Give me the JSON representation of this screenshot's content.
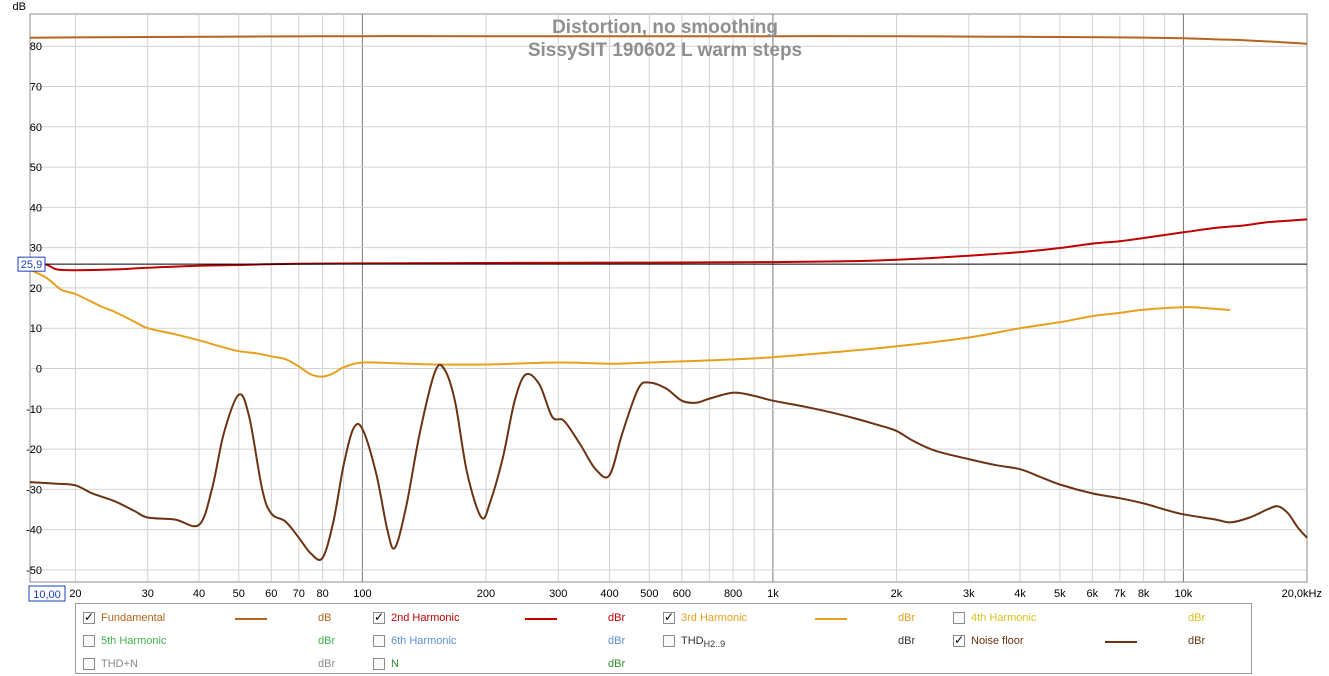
{
  "chart_data": {
    "type": "line",
    "title": "Distortion, no smoothing",
    "subtitle": "SissySIT 190602 L warm steps",
    "ylabel": "dB",
    "x_scale": "log",
    "xlim": [
      15.5,
      20000
    ],
    "ylim": [
      -53,
      88
    ],
    "grid": true,
    "x_ticks": [
      {
        "value": 20,
        "label": "20"
      },
      {
        "value": 30,
        "label": "30"
      },
      {
        "value": 40,
        "label": "40"
      },
      {
        "value": 50,
        "label": "50"
      },
      {
        "value": 60,
        "label": "60"
      },
      {
        "value": 70,
        "label": "70"
      },
      {
        "value": 80,
        "label": "80"
      },
      {
        "value": 100,
        "label": "100"
      },
      {
        "value": 200,
        "label": "200"
      },
      {
        "value": 300,
        "label": "300"
      },
      {
        "value": 400,
        "label": "400"
      },
      {
        "value": 500,
        "label": "500"
      },
      {
        "value": 600,
        "label": "600"
      },
      {
        "value": 800,
        "label": "800"
      },
      {
        "value": 1000,
        "label": "1k"
      },
      {
        "value": 2000,
        "label": "2k"
      },
      {
        "value": 3000,
        "label": "3k"
      },
      {
        "value": 4000,
        "label": "4k"
      },
      {
        "value": 5000,
        "label": "5k"
      },
      {
        "value": 6000,
        "label": "6k"
      },
      {
        "value": 7000,
        "label": "7k"
      },
      {
        "value": 8000,
        "label": "8k"
      },
      {
        "value": 10000,
        "label": "10k"
      },
      {
        "value": 20000,
        "label": "20,0kHz"
      }
    ],
    "y_ticks": [
      {
        "value": 80,
        "label": "80"
      },
      {
        "value": 70,
        "label": "70"
      },
      {
        "value": 60,
        "label": "60"
      },
      {
        "value": 50,
        "label": "50"
      },
      {
        "value": 40,
        "label": "40"
      },
      {
        "value": 30,
        "label": "30"
      },
      {
        "value": 20,
        "label": "20"
      },
      {
        "value": 10,
        "label": "10"
      },
      {
        "value": 0,
        "label": "0"
      },
      {
        "value": -10,
        "label": "-10"
      },
      {
        "value": -20,
        "label": "-20"
      },
      {
        "value": -30,
        "label": "-30"
      },
      {
        "value": -40,
        "label": "-40"
      },
      {
        "value": -50,
        "label": "-50"
      }
    ],
    "cursor": {
      "y_value": 25.9,
      "y_label": "25,9",
      "x_label": "10,00"
    },
    "series": [
      {
        "name": "Fundamental",
        "color": "#b5651d",
        "points": [
          [
            15.5,
            82.1
          ],
          [
            20,
            82.2
          ],
          [
            30,
            82.3
          ],
          [
            50,
            82.4
          ],
          [
            100,
            82.5
          ],
          [
            200,
            82.5
          ],
          [
            500,
            82.5
          ],
          [
            1000,
            82.5
          ],
          [
            2000,
            82.5
          ],
          [
            3000,
            82.4
          ],
          [
            5000,
            82.3
          ],
          [
            7000,
            82.2
          ],
          [
            10000,
            82.0
          ],
          [
            12000,
            81.7
          ],
          [
            14000,
            81.5
          ],
          [
            16000,
            81.2
          ],
          [
            18000,
            80.9
          ],
          [
            20000,
            80.6
          ]
        ]
      },
      {
        "name": "2nd Harmonic",
        "color": "#c00000",
        "points": [
          [
            15.5,
            26.3
          ],
          [
            17,
            25.8
          ],
          [
            18,
            24.6
          ],
          [
            20,
            24.4
          ],
          [
            25,
            24.6
          ],
          [
            30,
            25.0
          ],
          [
            40,
            25.5
          ],
          [
            50,
            25.7
          ],
          [
            70,
            26.0
          ],
          [
            100,
            26.1
          ],
          [
            200,
            26.2
          ],
          [
            500,
            26.3
          ],
          [
            1000,
            26.4
          ],
          [
            1500,
            26.6
          ],
          [
            2000,
            27.0
          ],
          [
            2500,
            27.5
          ],
          [
            3000,
            28.0
          ],
          [
            4000,
            28.9
          ],
          [
            5000,
            29.9
          ],
          [
            6000,
            31.0
          ],
          [
            7000,
            31.6
          ],
          [
            8000,
            32.4
          ],
          [
            10000,
            33.8
          ],
          [
            12000,
            34.9
          ],
          [
            14000,
            35.5
          ],
          [
            16000,
            36.3
          ],
          [
            18000,
            36.7
          ],
          [
            20000,
            37.0
          ]
        ]
      },
      {
        "name": "3rd Harmonic",
        "color": "#e6a01e",
        "points": [
          [
            15.5,
            24.5
          ],
          [
            17,
            22.5
          ],
          [
            18.5,
            19.5
          ],
          [
            20,
            18.5
          ],
          [
            23,
            15.5
          ],
          [
            25,
            14.0
          ],
          [
            28,
            11.5
          ],
          [
            30,
            10.0
          ],
          [
            35,
            8.5
          ],
          [
            40,
            7.0
          ],
          [
            45,
            5.5
          ],
          [
            50,
            4.3
          ],
          [
            55,
            3.8
          ],
          [
            60,
            3.0
          ],
          [
            65,
            2.3
          ],
          [
            70,
            0.5
          ],
          [
            75,
            -1.5
          ],
          [
            80,
            -2.0
          ],
          [
            85,
            -1.2
          ],
          [
            90,
            0.3
          ],
          [
            100,
            1.5
          ],
          [
            120,
            1.3
          ],
          [
            150,
            1.0
          ],
          [
            200,
            1.0
          ],
          [
            300,
            1.5
          ],
          [
            400,
            1.2
          ],
          [
            500,
            1.5
          ],
          [
            700,
            2.0
          ],
          [
            1000,
            2.8
          ],
          [
            1500,
            4.3
          ],
          [
            2000,
            5.5
          ],
          [
            3000,
            7.7
          ],
          [
            4000,
            10.0
          ],
          [
            5000,
            11.5
          ],
          [
            6000,
            13.0
          ],
          [
            7000,
            13.8
          ],
          [
            8000,
            14.6
          ],
          [
            10000,
            15.2
          ],
          [
            11000,
            15.1
          ],
          [
            13000,
            14.5
          ]
        ]
      },
      {
        "name": "Noise floor",
        "color": "#6b3312",
        "points": [
          [
            15.5,
            -28.2
          ],
          [
            18,
            -28.6
          ],
          [
            20,
            -29.0
          ],
          [
            22,
            -31.0
          ],
          [
            25,
            -33.0
          ],
          [
            28,
            -35.5
          ],
          [
            30,
            -37.0
          ],
          [
            35,
            -37.5
          ],
          [
            40,
            -38.8
          ],
          [
            43,
            -30
          ],
          [
            46,
            -16
          ],
          [
            50,
            -6.5
          ],
          [
            53,
            -12
          ],
          [
            57,
            -30
          ],
          [
            60,
            -36
          ],
          [
            65,
            -38
          ],
          [
            70,
            -42
          ],
          [
            75,
            -46
          ],
          [
            80,
            -47
          ],
          [
            85,
            -38
          ],
          [
            90,
            -24
          ],
          [
            95,
            -15
          ],
          [
            100,
            -15
          ],
          [
            108,
            -26
          ],
          [
            115,
            -40
          ],
          [
            120,
            -44.5
          ],
          [
            128,
            -34
          ],
          [
            138,
            -16
          ],
          [
            150,
            -1
          ],
          [
            158,
            0
          ],
          [
            168,
            -8
          ],
          [
            180,
            -26
          ],
          [
            195,
            -37
          ],
          [
            205,
            -33
          ],
          [
            220,
            -22
          ],
          [
            235,
            -8
          ],
          [
            250,
            -1.5
          ],
          [
            270,
            -4
          ],
          [
            290,
            -12
          ],
          [
            310,
            -13
          ],
          [
            340,
            -19
          ],
          [
            370,
            -25
          ],
          [
            400,
            -26.5
          ],
          [
            430,
            -16
          ],
          [
            470,
            -5
          ],
          [
            500,
            -3.5
          ],
          [
            550,
            -5
          ],
          [
            600,
            -8
          ],
          [
            650,
            -8.5
          ],
          [
            700,
            -7.5
          ],
          [
            800,
            -6
          ],
          [
            900,
            -6.8
          ],
          [
            1000,
            -8
          ],
          [
            1200,
            -9.5
          ],
          [
            1400,
            -11
          ],
          [
            1600,
            -12.5
          ],
          [
            1800,
            -14
          ],
          [
            2000,
            -15.5
          ],
          [
            2200,
            -18
          ],
          [
            2500,
            -20.5
          ],
          [
            3000,
            -22.5
          ],
          [
            3500,
            -24
          ],
          [
            4000,
            -25
          ],
          [
            4500,
            -27
          ],
          [
            5000,
            -28.8
          ],
          [
            6000,
            -31
          ],
          [
            7000,
            -32.2
          ],
          [
            8000,
            -33.5
          ],
          [
            9000,
            -35
          ],
          [
            10000,
            -36.2
          ],
          [
            12000,
            -37.5
          ],
          [
            13000,
            -38.2
          ],
          [
            14500,
            -37
          ],
          [
            16000,
            -35
          ],
          [
            17000,
            -34.2
          ],
          [
            18000,
            -36
          ],
          [
            19000,
            -39.5
          ],
          [
            20000,
            -42
          ]
        ]
      }
    ]
  },
  "legend": {
    "items": [
      {
        "label": "Fundamental",
        "checked": true,
        "unit": "dB",
        "color": "#b5651d",
        "unit_color": "#b5651d",
        "has_line": true
      },
      {
        "label": "2nd Harmonic",
        "checked": true,
        "unit": "dBr",
        "color": "#c00000",
        "unit_color": "#c00000",
        "has_line": true
      },
      {
        "label": "3rd Harmonic",
        "checked": true,
        "unit": "dBr",
        "color": "#e6a01e",
        "unit_color": "#e6a01e",
        "has_line": true
      },
      {
        "label": "4th Harmonic",
        "checked": false,
        "unit": "dBr",
        "color": "#d9c21e",
        "unit_color": "#d9c21e",
        "has_line": false
      },
      {
        "label": "5th Harmonic",
        "checked": false,
        "unit": "dBr",
        "color": "#3fb34a",
        "unit_color": "#3fb34a",
        "has_line": false
      },
      {
        "label": "6th Harmonic",
        "checked": false,
        "unit": "dBr",
        "color": "#5b8fd6",
        "unit_color": "#5b8fd6",
        "has_line": false
      },
      {
        "label": "THD",
        "sub": "H2..9",
        "checked": false,
        "unit": "dBr",
        "color": "#333333",
        "unit_color": "#333333",
        "has_line": false
      },
      {
        "label": "Noise floor",
        "checked": true,
        "unit": "dBr",
        "color": "#6b3312",
        "unit_color": "#6b3312",
        "has_line": true
      },
      {
        "label": "THD+N",
        "checked": false,
        "unit": "dBr",
        "color": "#8a8a8a",
        "unit_color": "#8a8a8a",
        "has_line": false
      },
      {
        "label": "N",
        "checked": false,
        "unit": "dBr",
        "color": "#2e8b2e",
        "unit_color": "#2e8b2e",
        "has_line": false
      }
    ]
  }
}
